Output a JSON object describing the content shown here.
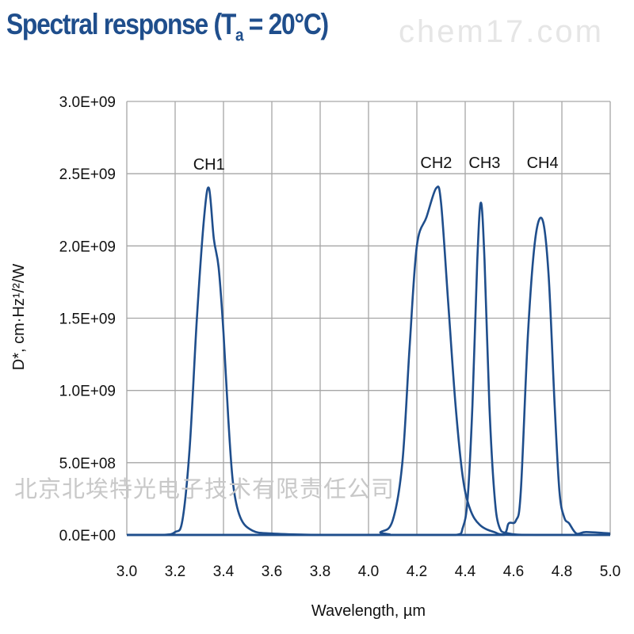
{
  "title": {
    "main": "Spectral response (T",
    "sub": "a",
    "rest": " = 20°C)"
  },
  "watermarks": [
    "chem17.com",
    "北京北埃特光电子技术有限责任公司"
  ],
  "colors": {
    "title": "#1f4e8c",
    "series": "#1f4e8c",
    "grid": "#a6a6a6"
  },
  "chart_data": {
    "type": "line",
    "title": "Spectral response (Ta = 20°C)",
    "xlabel": "Wavelength, µm",
    "ylabel": "D*, cm·Hz¹/²/W",
    "xlim": [
      3.0,
      5.0
    ],
    "ylim": [
      0,
      3000000000.0
    ],
    "grid": true,
    "x_ticks": [
      "3.0",
      "3.2",
      "3.4",
      "3.6",
      "3.8",
      "4.0",
      "4.2",
      "4.4",
      "4.6",
      "4.8",
      "5.0"
    ],
    "y_ticks": [
      "0.0E+00",
      "5.0E+08",
      "1.0E+09",
      "1.5E+09",
      "2.0E+09",
      "2.5E+09",
      "3.0E+09"
    ],
    "series": [
      {
        "name": "CH1",
        "label_at": [
          3.34,
          2550000000.0
        ],
        "x": [
          3.0,
          3.15,
          3.2,
          3.23,
          3.26,
          3.29,
          3.32,
          3.34,
          3.36,
          3.38,
          3.4,
          3.42,
          3.44,
          3.47,
          3.52,
          3.6,
          3.8,
          4.0,
          4.4,
          5.0
        ],
        "y": [
          0,
          0,
          20000000.0,
          100000000.0,
          600000000.0,
          1500000000.0,
          2200000000.0,
          2400000000.0,
          2050000000.0,
          1850000000.0,
          1400000000.0,
          800000000.0,
          350000000.0,
          120000000.0,
          30000000.0,
          10000000.0,
          0,
          0,
          0,
          0
        ]
      },
      {
        "name": "CH2",
        "label_at": [
          4.28,
          2560000000.0
        ],
        "x": [
          3.0,
          4.0,
          4.05,
          4.1,
          4.14,
          4.17,
          4.2,
          4.24,
          4.28,
          4.3,
          4.33,
          4.36,
          4.39,
          4.42,
          4.46,
          4.52,
          4.6,
          5.0
        ],
        "y": [
          0,
          0,
          20000000.0,
          100000000.0,
          500000000.0,
          1300000000.0,
          2000000000.0,
          2200000000.0,
          2400000000.0,
          2300000000.0,
          1600000000.0,
          900000000.0,
          400000000.0,
          180000000.0,
          70000000.0,
          20000000.0,
          0,
          0
        ]
      },
      {
        "name": "CH3",
        "label_at": [
          4.48,
          2560000000.0
        ],
        "x": [
          3.0,
          4.2,
          4.36,
          4.39,
          4.41,
          4.43,
          4.45,
          4.465,
          4.48,
          4.5,
          4.52,
          4.54,
          4.58,
          4.7,
          5.0
        ],
        "y": [
          0,
          0,
          0,
          50000000.0,
          250000000.0,
          900000000.0,
          1900000000.0,
          2300000000.0,
          1900000000.0,
          900000000.0,
          300000000.0,
          60000000.0,
          10000000.0,
          0,
          0
        ]
      },
      {
        "name": "CH4",
        "label_at": [
          4.72,
          2560000000.0
        ],
        "x": [
          3.0,
          4.4,
          4.55,
          4.58,
          4.61,
          4.63,
          4.66,
          4.69,
          4.72,
          4.745,
          4.77,
          4.79,
          4.81,
          4.83,
          4.86,
          4.9,
          5.0
        ],
        "y": [
          0,
          0,
          0,
          80000000.0,
          100000000.0,
          300000000.0,
          1400000000.0,
          2050000000.0,
          2180000000.0,
          1800000000.0,
          900000000.0,
          300000000.0,
          120000000.0,
          80000000.0,
          10000000.0,
          20000000.0,
          10000000.0
        ]
      }
    ]
  }
}
